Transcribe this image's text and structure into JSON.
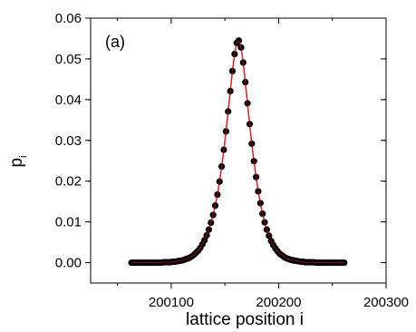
{
  "chart_data": {
    "type": "scatter",
    "panel_label": "(a)",
    "xlabel": "lattice position i",
    "ylabel_main": "p",
    "ylabel_sub": "i",
    "xlim": [
      200025,
      200300
    ],
    "ylim": [
      -0.005,
      0.06
    ],
    "xticks": [
      200100,
      200200,
      200300
    ],
    "xtick_labels": [
      "200100",
      "200200",
      "200300"
    ],
    "yticks": [
      0.0,
      0.01,
      0.02,
      0.03,
      0.04,
      0.05,
      0.06
    ],
    "ytick_labels": [
      "0.00",
      "0.01",
      "0.02",
      "0.03",
      "0.04",
      "0.05",
      "0.06"
    ],
    "grid": false,
    "series": [
      {
        "kind": "points",
        "color": "#000000",
        "x": [
          200063,
          200065,
          200067,
          200069,
          200071,
          200073,
          200075,
          200077,
          200079,
          200081,
          200083,
          200085,
          200087,
          200089,
          200091,
          200093,
          200095,
          200097,
          200099,
          200101,
          200103,
          200105,
          200107,
          200109,
          200111,
          200113,
          200115,
          200117,
          200119,
          200121,
          200123,
          200125,
          200127,
          200129,
          200131,
          200133,
          200135,
          200137,
          200139,
          200141,
          200143,
          200145,
          200147,
          200149,
          200151,
          200153,
          200155,
          200157,
          200159,
          200161,
          200163,
          200165,
          200167,
          200169,
          200171,
          200173,
          200175,
          200177,
          200179,
          200181,
          200183,
          200185,
          200187,
          200189,
          200191,
          200193,
          200195,
          200197,
          200199,
          200201,
          200203,
          200205,
          200207,
          200209,
          200211,
          200213,
          200215,
          200217,
          200219,
          200221,
          200223,
          200225,
          200227,
          200229,
          200231,
          200233,
          200235,
          200237,
          200239,
          200241,
          200243,
          200245,
          200247,
          200249,
          200251,
          200253,
          200255,
          200257,
          200259,
          200261
        ],
        "y": [
          0.0,
          0.0,
          0.0,
          0.0,
          0.0,
          0.0,
          0.0,
          0.0,
          0.0,
          0.0,
          0.0,
          0.0,
          0.0,
          0.0,
          0.0,
          0.0001,
          0.0001,
          0.0001,
          0.0001,
          0.0002,
          0.0002,
          0.0003,
          0.0004,
          0.0005,
          0.0006,
          0.0008,
          0.001,
          0.0012,
          0.0015,
          0.0019,
          0.0024,
          0.0029,
          0.0036,
          0.0045,
          0.0055,
          0.0067,
          0.0081,
          0.0098,
          0.0117,
          0.014,
          0.0167,
          0.0199,
          0.0236,
          0.0277,
          0.0322,
          0.0371,
          0.0421,
          0.047,
          0.0512,
          0.0539,
          0.0545,
          0.0528,
          0.0491,
          0.0443,
          0.0391,
          0.034,
          0.0292,
          0.0249,
          0.021,
          0.0175,
          0.0146,
          0.012,
          0.0099,
          0.0081,
          0.0066,
          0.0053,
          0.0043,
          0.0035,
          0.0028,
          0.0022,
          0.0018,
          0.0014,
          0.0011,
          0.0009,
          0.0007,
          0.0006,
          0.0005,
          0.0004,
          0.0003,
          0.0002,
          0.0002,
          0.0001,
          0.0001,
          0.0001,
          0.0001,
          0.0001,
          0.0,
          0.0,
          0.0,
          0.0,
          0.0,
          0.0,
          0.0,
          0.0,
          0.0,
          0.0,
          0.0,
          0.0,
          0.0,
          0.0
        ]
      },
      {
        "kind": "fit-line",
        "color": "#e0202a",
        "x": [
          200063,
          200065,
          200067,
          200069,
          200071,
          200073,
          200075,
          200077,
          200079,
          200081,
          200083,
          200085,
          200087,
          200089,
          200091,
          200093,
          200095,
          200097,
          200099,
          200101,
          200103,
          200105,
          200107,
          200109,
          200111,
          200113,
          200115,
          200117,
          200119,
          200121,
          200123,
          200125,
          200127,
          200129,
          200131,
          200133,
          200135,
          200137,
          200139,
          200141,
          200143,
          200145,
          200147,
          200149,
          200151,
          200153,
          200155,
          200157,
          200159,
          200161,
          200163,
          200165,
          200167,
          200169,
          200171,
          200173,
          200175,
          200177,
          200179,
          200181,
          200183,
          200185,
          200187,
          200189,
          200191,
          200193,
          200195,
          200197,
          200199,
          200201,
          200203,
          200205,
          200207,
          200209,
          200211,
          200213,
          200215,
          200217,
          200219,
          200221,
          200223,
          200225,
          200227,
          200229,
          200231,
          200233,
          200235,
          200237,
          200239,
          200241,
          200243,
          200245,
          200247,
          200249,
          200251,
          200253,
          200255,
          200257,
          200259,
          200261
        ],
        "y": [
          0.0,
          0.0,
          0.0,
          0.0,
          0.0,
          0.0,
          0.0,
          0.0,
          0.0,
          0.0,
          0.0,
          0.0,
          0.0,
          0.0,
          0.0,
          0.0001,
          0.0001,
          0.0001,
          0.0001,
          0.0002,
          0.0002,
          0.0003,
          0.0004,
          0.0005,
          0.0006,
          0.0008,
          0.001,
          0.0012,
          0.0015,
          0.0019,
          0.0024,
          0.0029,
          0.0036,
          0.0045,
          0.0055,
          0.0067,
          0.0081,
          0.0098,
          0.0117,
          0.014,
          0.0167,
          0.0199,
          0.0236,
          0.0277,
          0.0322,
          0.0371,
          0.0421,
          0.047,
          0.0512,
          0.0539,
          0.0545,
          0.0528,
          0.0491,
          0.0443,
          0.0391,
          0.034,
          0.0292,
          0.0249,
          0.021,
          0.0175,
          0.0146,
          0.012,
          0.0099,
          0.0081,
          0.0066,
          0.0053,
          0.0043,
          0.0035,
          0.0028,
          0.0022,
          0.0018,
          0.0014,
          0.0011,
          0.0009,
          0.0007,
          0.0006,
          0.0005,
          0.0004,
          0.0003,
          0.0002,
          0.0002,
          0.0001,
          0.0001,
          0.0001,
          0.0001,
          0.0001,
          0.0,
          0.0,
          0.0,
          0.0,
          0.0,
          0.0,
          0.0,
          0.0,
          0.0,
          0.0,
          0.0,
          0.0,
          0.0,
          0.0
        ]
      }
    ]
  }
}
